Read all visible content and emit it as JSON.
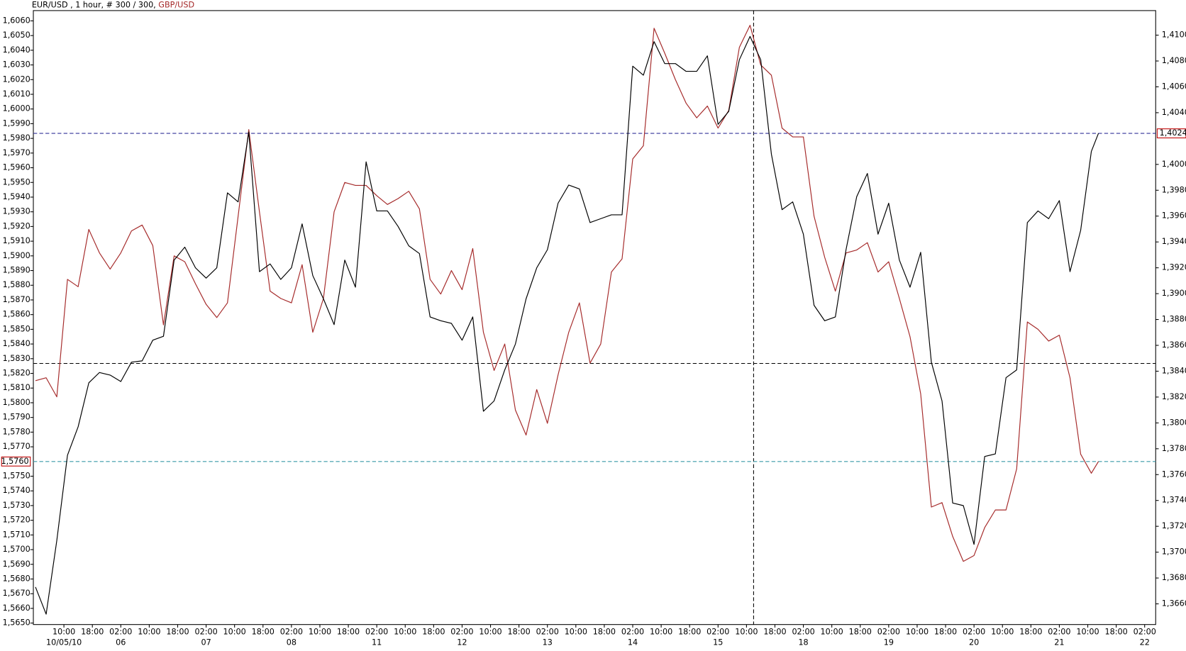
{
  "chart_data": {
    "type": "line",
    "title_info": " , 1 hour, # 300 / 300, ",
    "x": [
      0,
      3,
      6,
      9,
      12,
      15,
      18,
      21,
      24,
      27,
      30,
      33,
      36,
      39,
      42,
      45,
      48,
      51,
      54,
      57,
      60,
      63,
      66,
      69,
      72,
      75,
      78,
      81,
      84,
      87,
      90,
      93,
      96,
      99,
      102,
      105,
      108,
      111,
      114,
      117,
      120,
      123,
      126,
      129,
      132,
      135,
      138,
      141,
      144,
      147,
      150,
      153,
      156,
      159,
      162,
      165,
      168,
      171,
      174,
      177,
      180,
      183,
      186,
      189,
      192,
      195,
      198,
      201,
      204,
      207,
      210,
      213,
      216,
      219,
      222,
      225,
      228,
      231,
      234,
      237,
      240,
      243,
      246,
      249,
      252,
      255,
      258,
      261,
      264,
      267,
      270,
      273,
      276,
      279,
      282,
      285,
      288,
      291,
      294,
      297,
      299
    ],
    "xlim": [
      -0.6,
      315.1
    ],
    "xticks": [
      {
        "value": 8,
        "label": "10:00"
      },
      {
        "value": 16,
        "label": "18:00"
      },
      {
        "value": 24,
        "label": "02:00"
      },
      {
        "value": 32,
        "label": "10:00"
      },
      {
        "value": 40,
        "label": "18:00"
      },
      {
        "value": 48,
        "label": "02:00"
      },
      {
        "value": 56,
        "label": "10:00"
      },
      {
        "value": 64,
        "label": "18:00"
      },
      {
        "value": 72,
        "label": "02:00"
      },
      {
        "value": 80,
        "label": "10:00"
      },
      {
        "value": 88,
        "label": "18:00"
      },
      {
        "value": 96,
        "label": "02:00"
      },
      {
        "value": 104,
        "label": "10:00"
      },
      {
        "value": 112,
        "label": "18:00"
      },
      {
        "value": 120,
        "label": "02:00"
      },
      {
        "value": 128,
        "label": "10:00"
      },
      {
        "value": 136,
        "label": "18:00"
      },
      {
        "value": 144,
        "label": "02:00"
      },
      {
        "value": 152,
        "label": "10:00"
      },
      {
        "value": 160,
        "label": "18:00"
      },
      {
        "value": 168,
        "label": "02:00"
      },
      {
        "value": 176,
        "label": "10:00"
      },
      {
        "value": 184,
        "label": "18:00"
      },
      {
        "value": 192,
        "label": "02:00"
      },
      {
        "value": 200,
        "label": "10:00"
      },
      {
        "value": 208,
        "label": "18:00"
      },
      {
        "value": 216,
        "label": "02:00"
      },
      {
        "value": 224,
        "label": "10:00"
      },
      {
        "value": 232,
        "label": "18:00"
      },
      {
        "value": 240,
        "label": "02:00"
      },
      {
        "value": 248,
        "label": "10:00"
      },
      {
        "value": 256,
        "label": "18:00"
      },
      {
        "value": 264,
        "label": "02:00"
      },
      {
        "value": 272,
        "label": "10:00"
      },
      {
        "value": 280,
        "label": "18:00"
      },
      {
        "value": 288,
        "label": "02:00"
      },
      {
        "value": 296,
        "label": "10:00"
      },
      {
        "value": 304,
        "label": "18:00"
      },
      {
        "value": 312,
        "label": "02:00"
      }
    ],
    "xdates": [
      {
        "value": 8,
        "label": "10/05/10"
      },
      {
        "value": 24,
        "label": "06"
      },
      {
        "value": 48,
        "label": "07"
      },
      {
        "value": 72,
        "label": "08"
      },
      {
        "value": 96,
        "label": "11"
      },
      {
        "value": 120,
        "label": "12"
      },
      {
        "value": 144,
        "label": "13"
      },
      {
        "value": 168,
        "label": "14"
      },
      {
        "value": 192,
        "label": "15"
      },
      {
        "value": 216,
        "label": "18"
      },
      {
        "value": 240,
        "label": "19"
      },
      {
        "value": 264,
        "label": "20"
      },
      {
        "value": 288,
        "label": "21"
      },
      {
        "value": 312,
        "label": "22"
      }
    ],
    "ylim": [
      1.5649,
      1.6067
    ],
    "yticks": [
      {
        "value": 1.565,
        "label": "1,5650"
      },
      {
        "value": 1.566,
        "label": "1,5660"
      },
      {
        "value": 1.567,
        "label": "1,5670"
      },
      {
        "value": 1.568,
        "label": "1,5680"
      },
      {
        "value": 1.569,
        "label": "1,5690"
      },
      {
        "value": 1.57,
        "label": "1,5700"
      },
      {
        "value": 1.571,
        "label": "1,5710"
      },
      {
        "value": 1.572,
        "label": "1,5720"
      },
      {
        "value": 1.573,
        "label": "1,5730"
      },
      {
        "value": 1.574,
        "label": "1,5740"
      },
      {
        "value": 1.575,
        "label": "1,5750"
      },
      {
        "value": 1.577,
        "label": "1,5770"
      },
      {
        "value": 1.578,
        "label": "1,5780"
      },
      {
        "value": 1.579,
        "label": "1,5790"
      },
      {
        "value": 1.58,
        "label": "1,5800"
      },
      {
        "value": 1.581,
        "label": "1,5810"
      },
      {
        "value": 1.582,
        "label": "1,5820"
      },
      {
        "value": 1.583,
        "label": "1,5830"
      },
      {
        "value": 1.584,
        "label": "1,5840"
      },
      {
        "value": 1.585,
        "label": "1,5850"
      },
      {
        "value": 1.586,
        "label": "1,5860"
      },
      {
        "value": 1.587,
        "label": "1,5870"
      },
      {
        "value": 1.588,
        "label": "1,5880"
      },
      {
        "value": 1.589,
        "label": "1,5890"
      },
      {
        "value": 1.59,
        "label": "1,5900"
      },
      {
        "value": 1.591,
        "label": "1,5910"
      },
      {
        "value": 1.592,
        "label": "1,5920"
      },
      {
        "value": 1.593,
        "label": "1,5930"
      },
      {
        "value": 1.594,
        "label": "1,5940"
      },
      {
        "value": 1.595,
        "label": "1,5950"
      },
      {
        "value": 1.596,
        "label": "1,5960"
      },
      {
        "value": 1.597,
        "label": "1,5970"
      },
      {
        "value": 1.598,
        "label": "1,5980"
      },
      {
        "value": 1.599,
        "label": "1,5990"
      },
      {
        "value": 1.6,
        "label": "1,6000"
      },
      {
        "value": 1.601,
        "label": "1,6010"
      },
      {
        "value": 1.602,
        "label": "1,6020"
      },
      {
        "value": 1.603,
        "label": "1,6030"
      },
      {
        "value": 1.604,
        "label": "1,6040"
      },
      {
        "value": 1.605,
        "label": "1,6050"
      },
      {
        "value": 1.606,
        "label": "1,6060"
      }
    ],
    "y2lim": [
      1.3644,
      1.4119
    ],
    "y2ticks": [
      {
        "value": 1.366,
        "label": "1,3660"
      },
      {
        "value": 1.368,
        "label": "1,3680"
      },
      {
        "value": 1.37,
        "label": "1,3700"
      },
      {
        "value": 1.372,
        "label": "1,3720"
      },
      {
        "value": 1.374,
        "label": "1,3740"
      },
      {
        "value": 1.376,
        "label": "1,3760"
      },
      {
        "value": 1.378,
        "label": "1,3780"
      },
      {
        "value": 1.38,
        "label": "1,3800"
      },
      {
        "value": 1.382,
        "label": "1,3820"
      },
      {
        "value": 1.384,
        "label": "1,3840"
      },
      {
        "value": 1.386,
        "label": "1,3860"
      },
      {
        "value": 1.388,
        "label": "1,3880"
      },
      {
        "value": 1.39,
        "label": "1,3900"
      },
      {
        "value": 1.392,
        "label": "1,3920"
      },
      {
        "value": 1.394,
        "label": "1,3940"
      },
      {
        "value": 1.396,
        "label": "1,3960"
      },
      {
        "value": 1.398,
        "label": "1,3980"
      },
      {
        "value": 1.4,
        "label": "1,4000"
      },
      {
        "value": 1.404,
        "label": "1,4040"
      },
      {
        "value": 1.406,
        "label": "1,4060"
      },
      {
        "value": 1.408,
        "label": "1,4080"
      },
      {
        "value": 1.41,
        "label": "1,4100"
      }
    ],
    "series": [
      {
        "name": "EUR/USD",
        "color": "#000000",
        "axis": "y2",
        "values": [
          1.3673,
          1.3652,
          1.3709,
          1.3775,
          1.3797,
          1.3831,
          1.3839,
          1.3837,
          1.3832,
          1.3847,
          1.3848,
          1.3864,
          1.3867,
          1.3926,
          1.3936,
          1.392,
          1.3912,
          1.392,
          1.3978,
          1.3971,
          1.4025,
          1.3917,
          1.3923,
          1.3911,
          1.392,
          1.3954,
          1.3914,
          1.3896,
          1.3876,
          1.3926,
          1.3905,
          1.4002,
          1.3964,
          1.3964,
          1.3952,
          1.3937,
          1.3931,
          1.3882,
          1.3879,
          1.3877,
          1.3864,
          1.3882,
          1.3809,
          1.3817,
          1.3841,
          1.3861,
          1.3896,
          1.392,
          1.3934,
          1.397,
          1.3984,
          1.3981,
          1.3955,
          1.3958,
          1.3961,
          1.3961,
          1.4076,
          1.4069,
          1.4095,
          1.4078,
          1.4078,
          1.4072,
          1.4072,
          1.4084,
          1.4031,
          1.4041,
          1.4081,
          1.4099,
          1.4081,
          1.4008,
          1.3965,
          1.3971,
          1.3946,
          1.3891,
          1.3879,
          1.3882,
          1.3934,
          1.3975,
          1.3993,
          1.3946,
          1.397,
          1.3926,
          1.3905,
          1.3932,
          1.3847,
          1.3817,
          1.3738,
          1.3736,
          1.3706,
          1.3774,
          1.3776,
          1.3835,
          1.3841,
          1.3955,
          1.3964,
          1.3958,
          1.3972,
          1.3917,
          1.3949,
          1.401,
          1.4024
        ]
      },
      {
        "name": "GBP/USD",
        "color": "#a52a2a",
        "axis": "y",
        "values": [
          1.5815,
          1.5817,
          1.5804,
          1.5884,
          1.5879,
          1.5918,
          1.5902,
          1.5891,
          1.5902,
          1.5917,
          1.5921,
          1.5907,
          1.5853,
          1.59,
          1.5896,
          1.5881,
          1.5867,
          1.5858,
          1.5868,
          1.5927,
          1.5986,
          1.593,
          1.5876,
          1.5871,
          1.5868,
          1.5894,
          1.5848,
          1.5871,
          1.593,
          1.595,
          1.5948,
          1.5948,
          1.5941,
          1.5935,
          1.5939,
          1.5944,
          1.5932,
          1.5884,
          1.5874,
          1.589,
          1.5877,
          1.5905,
          1.5848,
          1.5822,
          1.584,
          1.5795,
          1.5778,
          1.5809,
          1.5786,
          1.5819,
          1.5848,
          1.5868,
          1.5827,
          1.584,
          1.5889,
          1.5898,
          1.5966,
          1.5975,
          1.6055,
          1.6038,
          1.602,
          1.6004,
          1.5994,
          1.6002,
          1.5987,
          1.5999,
          1.6042,
          1.6057,
          1.603,
          1.6023,
          1.5987,
          1.5981,
          1.5981,
          1.5927,
          1.5899,
          1.5876,
          1.5902,
          1.5904,
          1.5909,
          1.5889,
          1.5896,
          1.5871,
          1.5845,
          1.5806,
          1.5729,
          1.5732,
          1.5709,
          1.5692,
          1.5696,
          1.5715,
          1.5727,
          1.5727,
          1.5755,
          1.5855,
          1.585,
          1.5842,
          1.5846,
          1.5817,
          1.5765,
          1.5752,
          1.576
        ]
      }
    ],
    "hlines": [
      {
        "value": 1.4024,
        "axis": "y2",
        "label": "1,4024",
        "color": "#333399"
      },
      {
        "value": 1.576,
        "axis": "y",
        "label": "1,5760",
        "color": "#3a9aa8"
      }
    ],
    "crosshair": {
      "x": 202,
      "y2": 1.3846,
      "color": "#000000",
      "highlight": "#2a2aa0"
    }
  }
}
